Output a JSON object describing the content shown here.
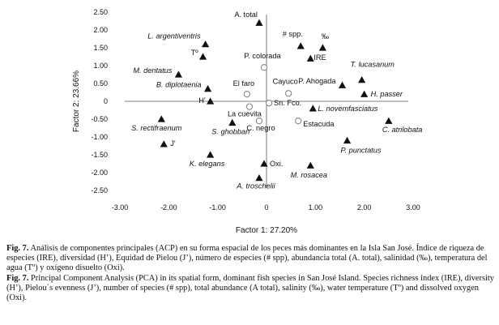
{
  "chart_data": {
    "type": "scatter",
    "xlabel": "Factor 1: 27.20%",
    "ylabel": "Factor 2: 23.66%",
    "xlim": [
      -3.0,
      3.0
    ],
    "ylim": [
      -2.5,
      2.5
    ],
    "xticks": [
      "-3.00",
      "-2.00",
      "-1.00",
      "0",
      "1.00",
      "2.00",
      "3.00"
    ],
    "yticks": [
      "2.50",
      "2.00",
      "1.50",
      "1.00",
      "0.50",
      "0",
      "-0.50",
      "-1.00",
      "-1.50",
      "-2.00",
      "-2.50"
    ],
    "grid": false,
    "series": [
      {
        "marker": "triangle",
        "points": [
          {
            "label": "A. total",
            "x": -0.15,
            "y": 2.2,
            "italic": false
          },
          {
            "label": "# spp.",
            "x": 0.7,
            "y": 1.55,
            "italic": false
          },
          {
            "label": "‰",
            "x": 1.15,
            "y": 1.5,
            "italic": false
          },
          {
            "label": "IRE",
            "x": 0.9,
            "y": 1.2,
            "italic": false
          },
          {
            "label": "L. argentiventris",
            "x": -1.25,
            "y": 1.6,
            "italic": true
          },
          {
            "label": "Tº",
            "x": -1.3,
            "y": 1.25,
            "italic": false
          },
          {
            "label": "M. dentatus",
            "x": -1.8,
            "y": 0.75,
            "italic": true
          },
          {
            "label": "B. diplotaenia",
            "x": -1.2,
            "y": 0.35,
            "italic": true
          },
          {
            "label": "H'",
            "x": -1.15,
            "y": 0.0,
            "italic": false
          },
          {
            "label": "T. lucasanum",
            "x": 1.95,
            "y": 0.6,
            "italic": true
          },
          {
            "label": "P. Ahogada",
            "x": 1.55,
            "y": 0.45,
            "italic": false
          },
          {
            "label": "H. passer",
            "x": 2.0,
            "y": 0.2,
            "italic": true
          },
          {
            "label": "L. novemfasciatus",
            "x": 0.95,
            "y": -0.2,
            "italic": true
          },
          {
            "label": "S. rectifraenum",
            "x": -2.15,
            "y": -0.5,
            "italic": true
          },
          {
            "label": "S. ghobban",
            "x": -0.7,
            "y": -0.6,
            "italic": true
          },
          {
            "label": "C. atrilobata",
            "x": 2.5,
            "y": -0.55,
            "italic": true
          },
          {
            "label": "J'",
            "x": -2.1,
            "y": -1.2,
            "italic": false
          },
          {
            "label": "P. punctatus",
            "x": 1.65,
            "y": -1.1,
            "italic": true
          },
          {
            "label": "K. elegans",
            "x": -1.15,
            "y": -1.5,
            "italic": true
          },
          {
            "label": "Oxi.",
            "x": -0.05,
            "y": -1.75,
            "italic": false
          },
          {
            "label": "M. rosacea",
            "x": 0.9,
            "y": -1.8,
            "italic": true
          },
          {
            "label": "A. troschelii",
            "x": -0.15,
            "y": -2.15,
            "italic": true
          }
        ]
      },
      {
        "marker": "circle",
        "points": [
          {
            "label": "P. colorada",
            "x": -0.05,
            "y": 0.95,
            "italic": false
          },
          {
            "label": "El faro",
            "x": -0.4,
            "y": 0.2,
            "italic": false
          },
          {
            "label": "Cayuco",
            "x": 0.45,
            "y": 0.22,
            "italic": false
          },
          {
            "label": "La cuevita",
            "x": -0.35,
            "y": -0.15,
            "italic": false
          },
          {
            "label": "Sn. Fco.",
            "x": 0.05,
            "y": -0.05,
            "italic": false
          },
          {
            "label": "C. negro",
            "x": -0.15,
            "y": -0.55,
            "italic": false
          },
          {
            "label": "Estacuda",
            "x": 0.65,
            "y": -0.55,
            "italic": false
          }
        ]
      }
    ]
  },
  "caption": {
    "es_ref": "Fig. 7.",
    "es_text": " Análisis de componentes principales (ACP) en su forma espacial de los peces más dominantes en la Isla San José. Índice de riqueza de especies (IRE), diversidad (H’), Equidad de Pielou (J’), número de especies (# spp), abundancia total (A. total), salinidad (‰), temperatura del agua (Tº) y oxígeno disuelto (Oxi).",
    "en_ref": "Fig. 7.",
    "en_text": " Principal Component Analysis (PCA) in its spatial form, dominant fish species in San José Island. Species richness index (IRE), diversity (H’), Pielou´s evenness (J’), number of species (# spp), total abundance (A total), salinity (‰), water temperature (Tº) and dissolved oxygen (Oxi)."
  }
}
